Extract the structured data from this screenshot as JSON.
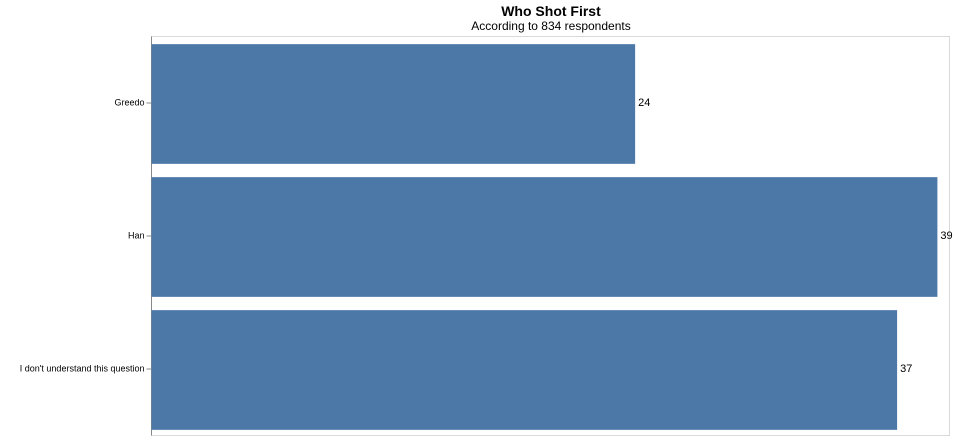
{
  "chart_data": {
    "type": "bar",
    "orientation": "horizontal",
    "title": "Who Shot First",
    "subtitle": "According to 834 respondents",
    "categories": [
      "Greedo",
      "Han",
      "I don't understand this question"
    ],
    "values": [
      24,
      39,
      37
    ],
    "xlim": [
      0,
      39.6
    ],
    "xlabel": "",
    "ylabel": "",
    "grid": false,
    "legend": "none",
    "colors": {
      "bar": "#4C78A8",
      "frame": "#d9d9d9",
      "axis": "#888888",
      "text": "#000000"
    }
  }
}
